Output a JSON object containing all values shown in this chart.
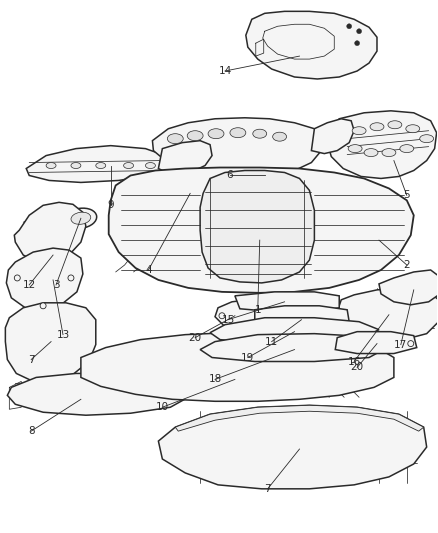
{
  "bg_color": "#ffffff",
  "line_color": "#2a2a2a",
  "fill_color": "#f5f5f5",
  "figsize": [
    4.38,
    5.33
  ],
  "dpi": 100,
  "title": "",
  "label_fs": 7.5,
  "lw_main": 1.1,
  "lw_detail": 0.55,
  "lw_callout": 0.6
}
